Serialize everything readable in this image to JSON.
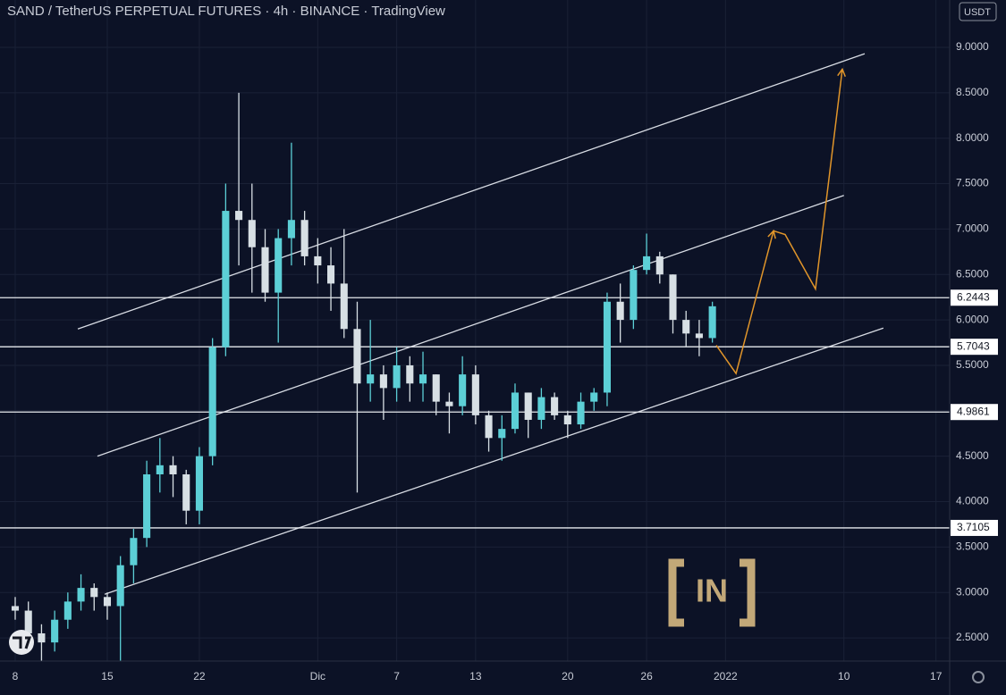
{
  "chart_data": {
    "type": "candlestick",
    "title": "SAND / TetherUS PERPETUAL FUTURES · 4h · BINANCE · TradingView",
    "currency": "USDT",
    "x": [
      0,
      1,
      2,
      3,
      4,
      5,
      6,
      7,
      8,
      9,
      10,
      11,
      12,
      13,
      14,
      15,
      16,
      17,
      18,
      19,
      20,
      21,
      22,
      23,
      24,
      25,
      26,
      27,
      28,
      29,
      30,
      31,
      32,
      33,
      34,
      35,
      36,
      37,
      38,
      39,
      40,
      41,
      42,
      43,
      44,
      45,
      46,
      47,
      48,
      49,
      50,
      51,
      52,
      53
    ],
    "open": [
      2.85,
      2.8,
      2.55,
      2.45,
      2.7,
      2.9,
      3.05,
      2.95,
      2.85,
      3.3,
      3.6,
      4.3,
      4.4,
      4.3,
      3.9,
      4.5,
      5.7,
      7.2,
      7.1,
      6.8,
      6.3,
      6.9,
      7.1,
      6.7,
      6.6,
      6.4,
      5.9,
      5.3,
      5.4,
      5.25,
      5.5,
      5.3,
      5.4,
      5.1,
      5.05,
      5.4,
      4.95,
      4.7,
      4.8,
      5.2,
      4.9,
      5.15,
      4.95,
      4.85,
      5.1,
      5.2,
      6.2,
      6.0,
      6.55,
      6.7,
      6.5,
      6.0,
      5.85,
      5.8
    ],
    "high": [
      2.95,
      2.9,
      2.65,
      2.8,
      3.0,
      3.2,
      3.1,
      3.0,
      3.4,
      3.7,
      4.45,
      4.7,
      4.5,
      4.35,
      4.6,
      5.8,
      7.5,
      8.5,
      7.5,
      7.0,
      7.0,
      7.95,
      7.2,
      6.9,
      6.8,
      7.0,
      6.2,
      6.0,
      5.5,
      5.7,
      5.6,
      5.65,
      5.4,
      5.2,
      5.6,
      5.5,
      5.0,
      4.95,
      5.3,
      5.2,
      5.25,
      5.2,
      5.0,
      5.2,
      5.25,
      6.3,
      6.4,
      6.6,
      6.95,
      6.75,
      6.5,
      6.1,
      6.0,
      6.2
    ],
    "low": [
      2.7,
      2.45,
      2.25,
      2.35,
      2.6,
      2.8,
      2.8,
      2.7,
      2.25,
      3.1,
      3.5,
      4.1,
      4.05,
      3.75,
      3.75,
      4.4,
      5.6,
      6.6,
      6.3,
      6.2,
      5.75,
      6.6,
      6.6,
      6.4,
      6.1,
      5.8,
      4.1,
      5.1,
      4.9,
      5.1,
      5.1,
      5.1,
      4.95,
      4.75,
      4.95,
      4.85,
      4.55,
      4.45,
      4.75,
      4.7,
      4.8,
      4.9,
      4.7,
      4.8,
      5.0,
      5.05,
      5.75,
      5.9,
      6.5,
      6.4,
      5.85,
      5.7,
      5.6,
      5.75
    ],
    "close": [
      2.8,
      2.55,
      2.45,
      2.7,
      2.9,
      3.05,
      2.95,
      2.85,
      3.3,
      3.6,
      4.3,
      4.4,
      4.3,
      3.9,
      4.5,
      5.7,
      7.2,
      7.1,
      6.8,
      6.3,
      6.9,
      7.1,
      6.7,
      6.6,
      6.4,
      5.9,
      5.3,
      5.4,
      5.25,
      5.5,
      5.3,
      5.4,
      5.1,
      5.05,
      5.4,
      4.95,
      4.7,
      4.8,
      5.2,
      4.9,
      5.15,
      4.95,
      4.85,
      5.1,
      5.2,
      6.2,
      6.0,
      6.55,
      6.7,
      6.5,
      6.0,
      5.85,
      5.8,
      6.15
    ],
    "up_color": "#5ccfd6",
    "down_color": "#d7dfe4",
    "xlim": [
      -1.156,
      71.04
    ],
    "xticks": [
      {
        "value": 0,
        "label": "8"
      },
      {
        "value": 7,
        "label": "15"
      },
      {
        "value": 14,
        "label": "22"
      },
      {
        "value": 23,
        "label": "Dic"
      },
      {
        "value": 29,
        "label": "7"
      },
      {
        "value": 35,
        "label": "13"
      },
      {
        "value": 42,
        "label": "20"
      },
      {
        "value": 48,
        "label": "26"
      },
      {
        "value": 54,
        "label": "2022"
      },
      {
        "value": 63,
        "label": "10"
      },
      {
        "value": 70,
        "label": "17"
      }
    ],
    "ylim": [
      2.245,
      9.521
    ],
    "yticks": [
      {
        "value": 2.5,
        "label": "2.5000"
      },
      {
        "value": 3,
        "label": "3.0000"
      },
      {
        "value": 3.5,
        "label": "3.5000"
      },
      {
        "value": 4,
        "label": "4.0000"
      },
      {
        "value": 4.5,
        "label": "4.5000"
      },
      {
        "value": 5,
        "label": "5.0000"
      },
      {
        "value": 5.5,
        "label": "5.5000"
      },
      {
        "value": 6,
        "label": "6.0000"
      },
      {
        "value": 6.5,
        "label": "6.5000"
      },
      {
        "value": 7,
        "label": "7.0000"
      },
      {
        "value": 7.5,
        "label": "7.5000"
      },
      {
        "value": 8,
        "label": "8.0000"
      },
      {
        "value": 8.5,
        "label": "8.5000"
      },
      {
        "value": 9,
        "label": "9.0000"
      }
    ],
    "grid": true,
    "levels": [
      6.2443,
      5.7043,
      4.9861,
      3.7105
    ],
    "trendlines": [
      {
        "x": [
          4.76,
          64.58
        ],
        "y": [
          5.9,
          8.93
        ]
      },
      {
        "x": [
          6.25,
          63.0
        ],
        "y": [
          4.5,
          7.37
        ]
      },
      {
        "x": [
          6.8,
          66.0
        ],
        "y": [
          2.98,
          5.91
        ]
      }
    ],
    "projection": {
      "color": "#e0952a",
      "x": [
        53.3,
        54.8,
        57.65,
        58.53,
        60.84,
        62.88
      ],
      "y": [
        5.72,
        5.41,
        6.98,
        6.94,
        6.34,
        8.76
      ]
    },
    "watermark": "IN"
  }
}
